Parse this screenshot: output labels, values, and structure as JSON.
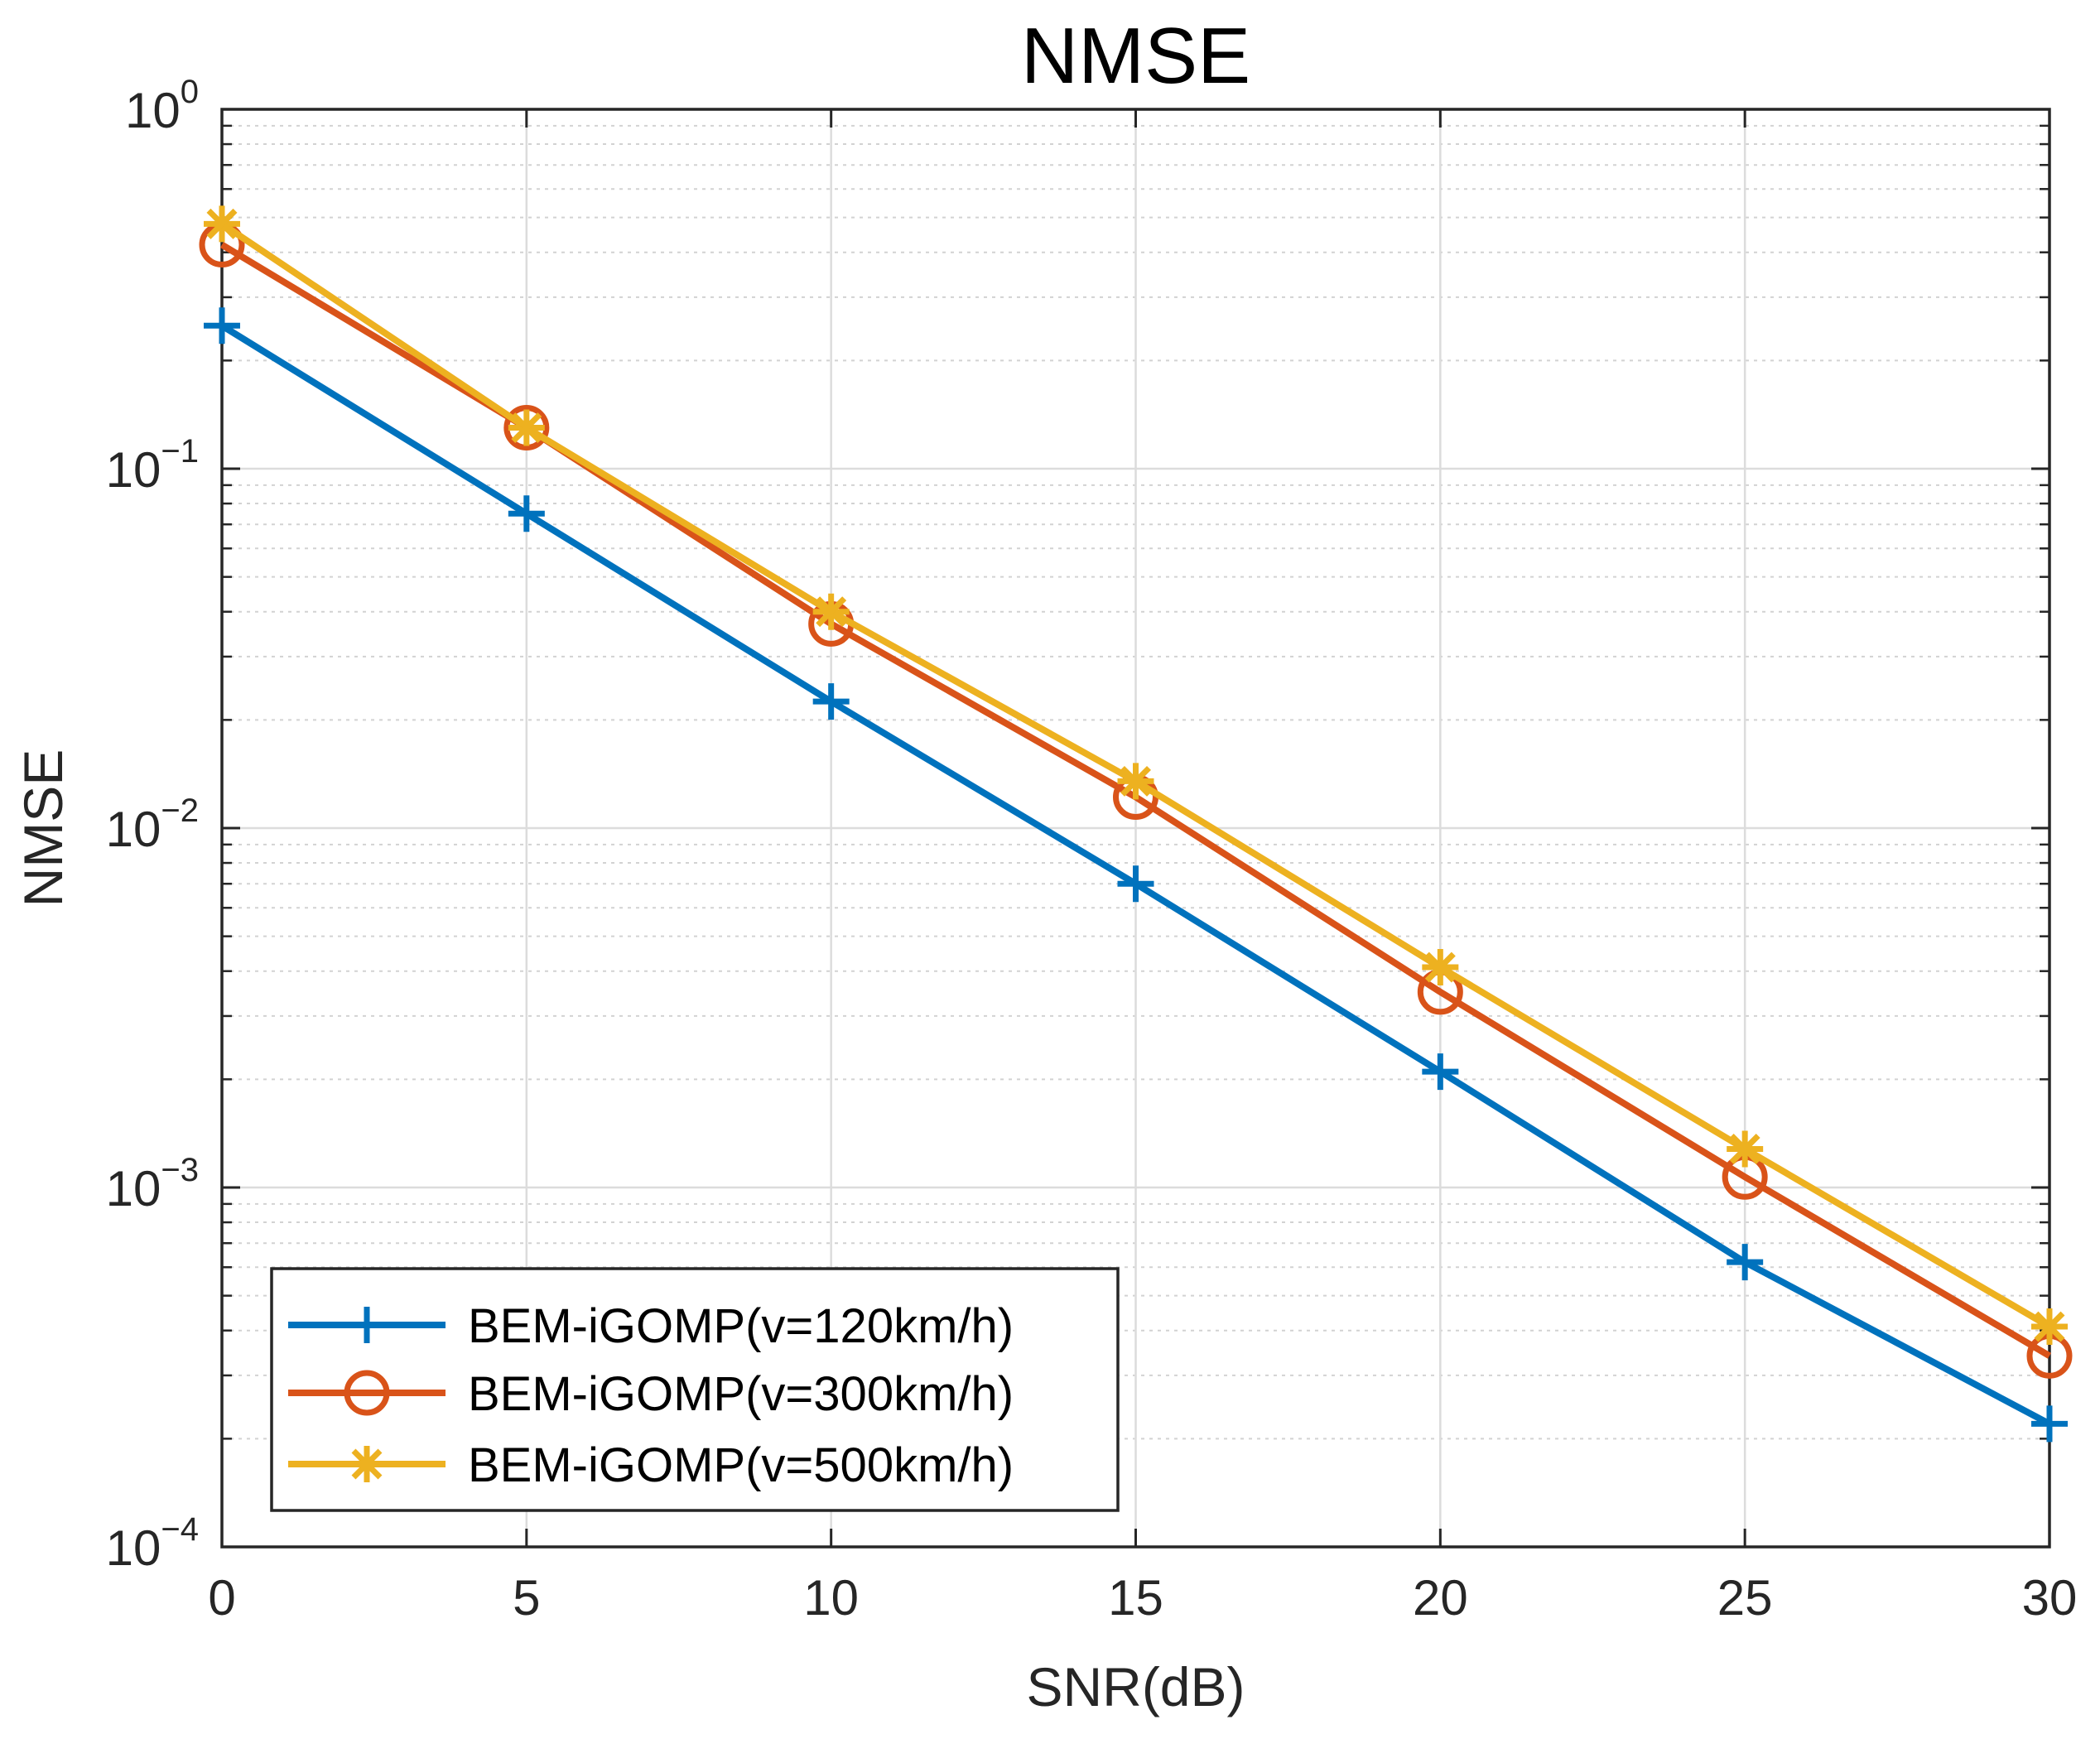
{
  "chart_data": {
    "type": "line",
    "title": "NMSE",
    "xlabel": "SNR(dB)",
    "ylabel": "NMSE",
    "yscale": "log",
    "xlim": [
      0,
      30
    ],
    "ylim": [
      0.0001,
      1
    ],
    "grid": true,
    "minor_grid": true,
    "x_ticks": [
      0,
      5,
      10,
      15,
      20,
      25,
      30
    ],
    "x_tick_labels": [
      "0",
      "5",
      "10",
      "15",
      "20",
      "25",
      "30"
    ],
    "y_ticks": [
      {
        "value": 1,
        "base": "10",
        "exp": "0"
      },
      {
        "value": 0.1,
        "base": "10",
        "exp": "−1"
      },
      {
        "value": 0.01,
        "base": "10",
        "exp": "−2"
      },
      {
        "value": 0.001,
        "base": "10",
        "exp": "−3"
      },
      {
        "value": 0.0001,
        "base": "10",
        "exp": "−4"
      }
    ],
    "legend_position": "bottom-left",
    "x": [
      0,
      5,
      10,
      15,
      20,
      25,
      30
    ],
    "series": [
      {
        "name": "BEM-iGOMP(v=120km/h)",
        "color": "#0072BD",
        "marker": "plus",
        "values": [
          0.25,
          0.075,
          0.0225,
          0.007,
          0.0021,
          0.00062,
          0.00022
        ]
      },
      {
        "name": "BEM-iGOMP(v=300km/h)",
        "color": "#D95319",
        "marker": "circle",
        "values": [
          0.42,
          0.13,
          0.037,
          0.0122,
          0.0035,
          0.00107,
          0.00034
        ]
      },
      {
        "name": "BEM-iGOMP(v=500km/h)",
        "color": "#EDB120",
        "marker": "asterisk",
        "values": [
          0.48,
          0.13,
          0.04,
          0.0135,
          0.0041,
          0.00128,
          0.00041
        ]
      }
    ]
  }
}
